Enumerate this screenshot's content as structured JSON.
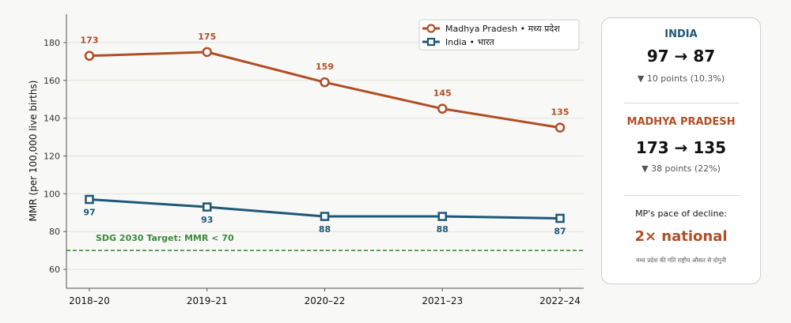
{
  "chart_data": {
    "type": "line",
    "categories": [
      "2018–20",
      "2019–21",
      "2020–22",
      "2021–23",
      "2022–24"
    ],
    "ylabel": "MMR (per 100,000 live births)",
    "yticks": [
      60,
      80,
      100,
      120,
      140,
      160,
      180
    ],
    "ylim": [
      50,
      195
    ],
    "grid": "horizontal",
    "legend_position": "top-right",
    "series": [
      {
        "name": "Madhya Pradesh  •  मध्य प्रदेश",
        "values": [
          173,
          175,
          159,
          145,
          135
        ],
        "color": "#b14e25",
        "marker": "circle",
        "labels": [
          "173",
          "175",
          "159",
          "145",
          "135"
        ]
      },
      {
        "name": "India  •  भारत",
        "values": [
          97,
          93,
          88,
          88,
          87
        ],
        "color": "#1f5777",
        "marker": "square",
        "labels": [
          "97",
          "93",
          "88",
          "88",
          "87"
        ]
      }
    ],
    "target": {
      "value": 70,
      "label": "SDG 2030 Target: MMR < 70",
      "color": "#3d8a3d"
    }
  },
  "panel": {
    "india": {
      "title": "INDIA",
      "change": "97 → 87",
      "detail": "▼ 10 points  (10.3%)",
      "color": "#1f5777"
    },
    "mp": {
      "title": "MADHYA PRADESH",
      "change": "173 → 135",
      "detail": "▼ 38 points  (22%)",
      "color": "#b14e25"
    },
    "pace": {
      "label": "MP's pace of decline:",
      "value": "2× national",
      "hindi": "मध्य प्रदेश की गति राष्ट्रीय औसत से दोगुनी"
    }
  }
}
